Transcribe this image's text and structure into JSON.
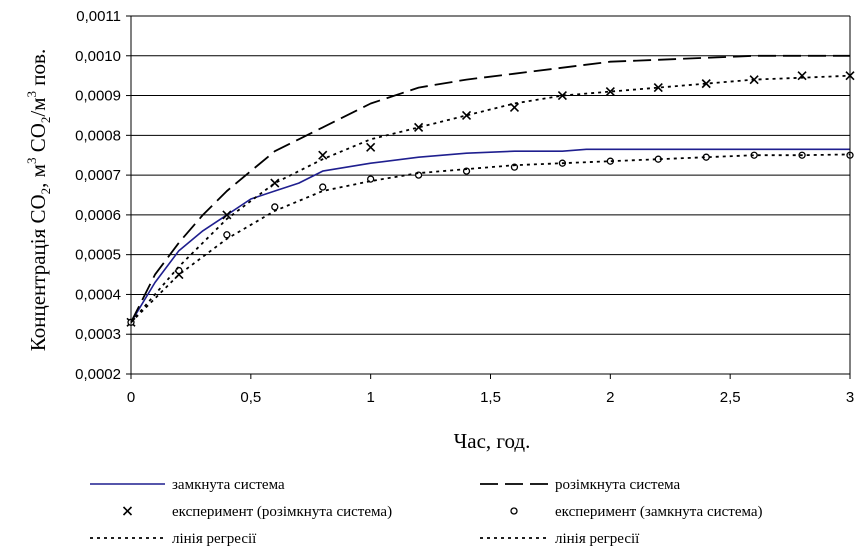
{
  "chart_data": {
    "type": "line",
    "xlabel": "Час, год.",
    "ylabel": {
      "prefix": "Концентрація СО",
      "subscript": "2",
      "mid": ", м",
      "sup1": "3",
      "mid2": " СО",
      "sub2": "2",
      "mid3": "/м",
      "sup2": "3",
      "suffix": " пов."
    },
    "xlim": [
      0,
      3
    ],
    "ylim": [
      0.0002,
      0.0011
    ],
    "x_ticks": [
      0,
      0.5,
      1,
      1.5,
      2,
      2.5,
      3
    ],
    "x_tick_labels": [
      "0",
      "0,5",
      "1",
      "1,5",
      "2",
      "2,5",
      "3"
    ],
    "y_ticks": [
      0.0002,
      0.0003,
      0.0004,
      0.0005,
      0.0006,
      0.0007,
      0.0008,
      0.0009,
      0.001,
      0.0011
    ],
    "y_tick_labels": [
      "0,0002",
      "0,0003",
      "0,0004",
      "0,0005",
      "0,0006",
      "0,0007",
      "0,0008",
      "0,0009",
      "0,0010",
      "0,0011"
    ],
    "grid": "horizontal",
    "legend_position": "bottom",
    "series": [
      {
        "name": "замкнута система",
        "style": "solid",
        "color": "#1f1f8f",
        "x": [
          0,
          0.1,
          0.2,
          0.3,
          0.4,
          0.5,
          0.6,
          0.7,
          0.8,
          1.0,
          1.2,
          1.4,
          1.6,
          1.8,
          1.9,
          2.0,
          2.2,
          2.5,
          3.0
        ],
        "y": [
          0.00033,
          0.00043,
          0.00051,
          0.00056,
          0.0006,
          0.00064,
          0.00066,
          0.00068,
          0.00071,
          0.00073,
          0.000745,
          0.000755,
          0.00076,
          0.00076,
          0.000765,
          0.000765,
          0.000765,
          0.000765,
          0.000765
        ]
      },
      {
        "name": "розімкнута система",
        "style": "long-dash",
        "color": "#000000",
        "x": [
          0,
          0.1,
          0.2,
          0.3,
          0.4,
          0.5,
          0.6,
          0.7,
          0.8,
          1.0,
          1.2,
          1.4,
          1.6,
          1.8,
          2.0,
          2.2,
          2.4,
          2.6,
          2.8,
          3.0
        ],
        "y": [
          0.00033,
          0.00045,
          0.00053,
          0.0006,
          0.00066,
          0.00071,
          0.00076,
          0.00079,
          0.00082,
          0.00088,
          0.00092,
          0.00094,
          0.000955,
          0.00097,
          0.000985,
          0.00099,
          0.000995,
          0.001,
          0.001,
          0.001
        ]
      },
      {
        "name": "експеримент (розімкнута система)",
        "style": "marker-x",
        "color": "#000000",
        "x": [
          0,
          0.2,
          0.4,
          0.6,
          0.8,
          1.0,
          1.2,
          1.4,
          1.6,
          1.8,
          2.0,
          2.2,
          2.4,
          2.6,
          2.8,
          3.0
        ],
        "y": [
          0.00033,
          0.00045,
          0.0006,
          0.00068,
          0.00075,
          0.00077,
          0.00082,
          0.00085,
          0.00087,
          0.0009,
          0.00091,
          0.00092,
          0.00093,
          0.00094,
          0.00095,
          0.00095
        ]
      },
      {
        "name": "експеримент (замкнута система)",
        "style": "marker-circle",
        "color": "#000000",
        "x": [
          0,
          0.2,
          0.4,
          0.6,
          0.8,
          1.0,
          1.2,
          1.4,
          1.6,
          1.8,
          2.0,
          2.2,
          2.4,
          2.6,
          2.8,
          3.0
        ],
        "y": [
          0.00033,
          0.00046,
          0.00055,
          0.00062,
          0.00067,
          0.00069,
          0.0007,
          0.00071,
          0.00072,
          0.00073,
          0.000735,
          0.00074,
          0.000745,
          0.00075,
          0.00075,
          0.00075
        ]
      },
      {
        "name": "лінія регресії",
        "style": "short-dash",
        "color": "#000000",
        "x": [
          0,
          0.2,
          0.4,
          0.6,
          0.8,
          1.0,
          1.2,
          1.4,
          1.6,
          1.8,
          2.0,
          2.2,
          2.4,
          2.6,
          2.8,
          3.0
        ],
        "y": [
          0.00033,
          0.00047,
          0.00059,
          0.00068,
          0.00074,
          0.00079,
          0.00082,
          0.00085,
          0.00088,
          0.0009,
          0.00091,
          0.00092,
          0.00093,
          0.00094,
          0.000945,
          0.00095
        ]
      },
      {
        "name": "лінія регресії",
        "style": "short-dash",
        "color": "#000000",
        "x": [
          0,
          0.2,
          0.4,
          0.6,
          0.8,
          1.0,
          1.2,
          1.4,
          1.6,
          1.8,
          2.0,
          2.2,
          2.4,
          2.6,
          2.8,
          3.0
        ],
        "y": [
          0.00033,
          0.00045,
          0.00054,
          0.00061,
          0.00066,
          0.000685,
          0.000705,
          0.000715,
          0.000725,
          0.00073,
          0.000735,
          0.00074,
          0.000745,
          0.00075,
          0.00075,
          0.000752
        ]
      }
    ]
  }
}
